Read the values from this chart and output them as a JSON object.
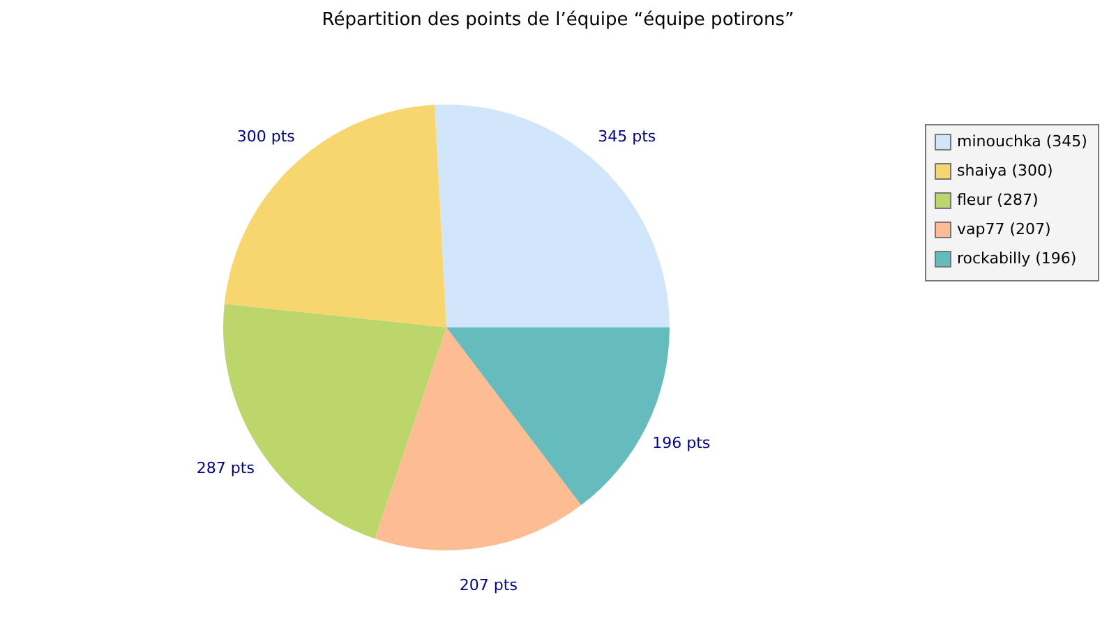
{
  "chart_data": {
    "type": "pie",
    "title": "Répartition des points de l’équipe “équipe potirons”",
    "categories": [
      "minouchka (345)",
      "shaiya (300)",
      "fleur (287)",
      "vap77 (207)",
      "rockabilly (196)"
    ],
    "values": [
      345,
      300,
      287,
      207,
      196
    ],
    "colors": [
      "#d1e6fa",
      "#f7d66f",
      "#bdd66b",
      "#fdbc91",
      "#66bcbc"
    ],
    "value_labels": [
      "345 pts",
      "300 pts",
      "287 pts",
      "207 pts",
      "196 pts"
    ],
    "legend": "top right"
  }
}
